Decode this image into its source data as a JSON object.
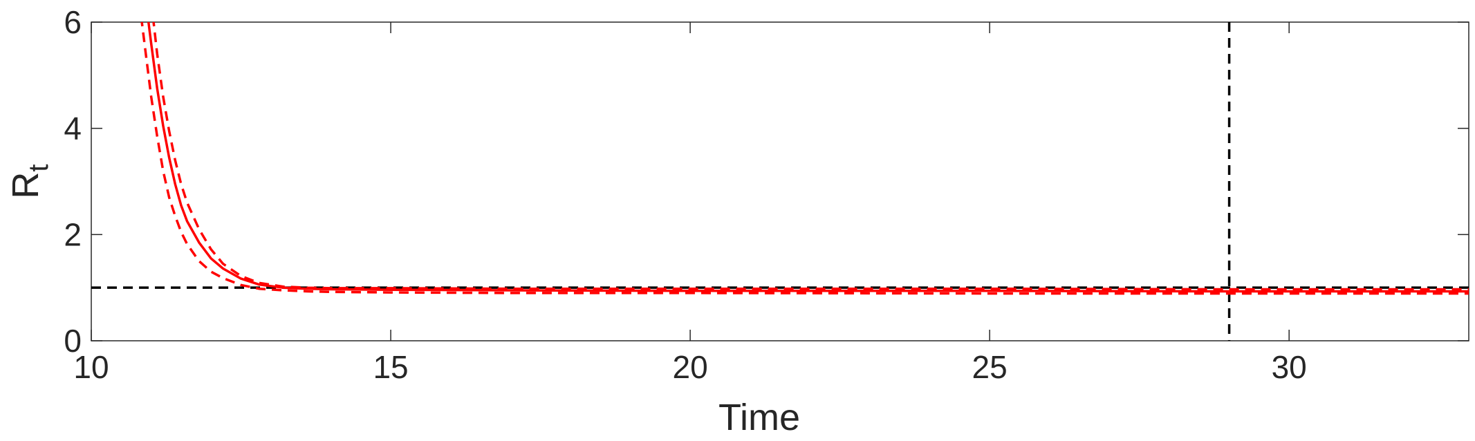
{
  "chart_data": {
    "type": "line",
    "title": "",
    "xlabel": "Time",
    "ylabel": "R",
    "ylabel_subscript": "t",
    "xlim": [
      10,
      33
    ],
    "ylim": [
      0,
      6
    ],
    "xticks": [
      10,
      15,
      20,
      25,
      30
    ],
    "yticks": [
      0,
      2,
      4,
      6
    ],
    "xtick_labels": [
      "10",
      "15",
      "20",
      "25",
      "30"
    ],
    "ytick_labels": [
      "0",
      "2",
      "4",
      "6"
    ],
    "grid": false,
    "legend": null,
    "series": [
      {
        "role": "estimate",
        "color": "#ff0000",
        "style": "solid",
        "x": [
          10.9,
          11.0,
          11.1,
          11.2,
          11.3,
          11.4,
          11.5,
          11.6,
          11.8,
          12.0,
          12.2,
          12.5,
          12.8,
          13.2,
          13.6,
          14.0,
          15.0,
          17.0,
          20.0,
          25.0,
          29.0,
          33.0
        ],
        "y": [
          6.5,
          5.6,
          4.75,
          4.05,
          3.45,
          2.95,
          2.55,
          2.25,
          1.85,
          1.55,
          1.36,
          1.17,
          1.06,
          1.0,
          0.98,
          0.97,
          0.96,
          0.95,
          0.94,
          0.94,
          0.93,
          0.93
        ]
      },
      {
        "role": "upper-bound",
        "color": "#ff0000",
        "style": "dashed",
        "x": [
          11.0,
          11.1,
          11.2,
          11.3,
          11.4,
          11.5,
          11.6,
          11.8,
          12.0,
          12.2,
          12.5,
          12.8,
          13.2,
          13.6,
          14.0,
          15.0,
          17.0,
          20.0,
          25.0,
          29.0,
          33.0
        ],
        "y": [
          6.4,
          5.4,
          4.6,
          3.95,
          3.4,
          2.95,
          2.6,
          2.1,
          1.72,
          1.45,
          1.22,
          1.09,
          1.02,
          1.0,
          0.99,
          0.99,
          0.98,
          0.98,
          0.98,
          0.97,
          0.97
        ]
      },
      {
        "role": "lower-bound",
        "color": "#ff0000",
        "style": "dashed",
        "x": [
          10.8,
          10.9,
          11.0,
          11.1,
          11.2,
          11.3,
          11.4,
          11.5,
          11.6,
          11.8,
          12.0,
          12.2,
          12.5,
          12.8,
          13.2,
          13.6,
          14.0,
          15.0,
          17.0,
          20.0,
          25.0,
          29.0,
          33.0
        ],
        "y": [
          6.4,
          5.5,
          4.6,
          3.85,
          3.2,
          2.7,
          2.35,
          2.05,
          1.82,
          1.5,
          1.3,
          1.18,
          1.05,
          0.98,
          0.95,
          0.93,
          0.92,
          0.91,
          0.9,
          0.9,
          0.89,
          0.89,
          0.89
        ]
      }
    ],
    "reference_lines": [
      {
        "orientation": "horizontal",
        "value": 1,
        "color": "#000000",
        "style": "dashed"
      },
      {
        "orientation": "vertical",
        "value": 29,
        "color": "#000000",
        "style": "dashed"
      }
    ]
  }
}
